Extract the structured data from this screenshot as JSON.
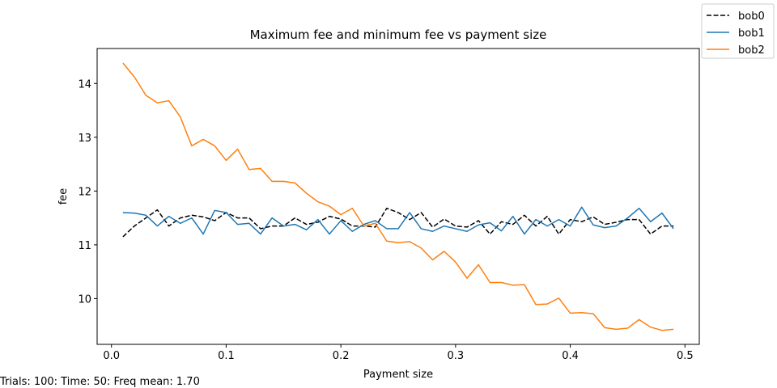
{
  "chart_data": {
    "type": "line",
    "title": "Maximum fee and minimum fee vs payment size",
    "xlabel": "Payment size",
    "ylabel": "fee",
    "xlim": [
      -0.0125,
      0.5125
    ],
    "ylim": [
      9.15,
      14.65
    ],
    "xticks": [
      0.0,
      0.1,
      0.2,
      0.3,
      0.4,
      0.5
    ],
    "xtick_labels": [
      "0.0",
      "0.1",
      "0.2",
      "0.3",
      "0.4",
      "0.5"
    ],
    "yticks": [
      10,
      11,
      12,
      13,
      14
    ],
    "ytick_labels": [
      "10",
      "11",
      "12",
      "13",
      "14"
    ],
    "grid": false,
    "legend_position": "top-right",
    "x": [
      0.01,
      0.02,
      0.03,
      0.04,
      0.05,
      0.06,
      0.07,
      0.08,
      0.09,
      0.1,
      0.11,
      0.12,
      0.13,
      0.14,
      0.15,
      0.16,
      0.17,
      0.18,
      0.19,
      0.2,
      0.21,
      0.22,
      0.23,
      0.24,
      0.25,
      0.26,
      0.27,
      0.28,
      0.29,
      0.3,
      0.31,
      0.32,
      0.33,
      0.34,
      0.35,
      0.36,
      0.37,
      0.38,
      0.39,
      0.4,
      0.41,
      0.42,
      0.43,
      0.44,
      0.45,
      0.46,
      0.47,
      0.48,
      0.49
    ],
    "series": [
      {
        "name": "bob0",
        "color": "#000000",
        "dash": true,
        "values": [
          11.15,
          11.35,
          11.5,
          11.65,
          11.35,
          11.5,
          11.55,
          11.52,
          11.45,
          11.6,
          11.5,
          11.5,
          11.3,
          11.35,
          11.35,
          11.5,
          11.38,
          11.42,
          11.53,
          11.48,
          11.35,
          11.35,
          11.33,
          11.68,
          11.6,
          11.47,
          11.6,
          11.33,
          11.48,
          11.35,
          11.33,
          11.45,
          11.2,
          11.43,
          11.38,
          11.55,
          11.35,
          11.53,
          11.2,
          11.47,
          11.43,
          11.52,
          11.38,
          11.42,
          11.47,
          11.47,
          11.2,
          11.35,
          11.35
        ]
      },
      {
        "name": "bob1",
        "color": "#1f77b4",
        "dash": false,
        "values": [
          11.6,
          11.59,
          11.55,
          11.35,
          11.53,
          11.4,
          11.5,
          11.2,
          11.64,
          11.6,
          11.38,
          11.4,
          11.2,
          11.5,
          11.35,
          11.38,
          11.28,
          11.47,
          11.2,
          11.45,
          11.25,
          11.38,
          11.45,
          11.3,
          11.3,
          11.6,
          11.3,
          11.25,
          11.35,
          11.3,
          11.25,
          11.37,
          11.41,
          11.26,
          11.53,
          11.2,
          11.47,
          11.35,
          11.47,
          11.35,
          11.7,
          11.37,
          11.32,
          11.35,
          11.5,
          11.68,
          11.43,
          11.59,
          11.3
        ]
      },
      {
        "name": "bob2",
        "color": "#ff7f0e",
        "dash": false,
        "values": [
          14.38,
          14.12,
          13.78,
          13.64,
          13.68,
          13.38,
          12.84,
          12.96,
          12.84,
          12.57,
          12.78,
          12.4,
          12.42,
          12.18,
          12.18,
          12.15,
          11.96,
          11.8,
          11.72,
          11.56,
          11.68,
          11.35,
          11.4,
          11.07,
          11.04,
          11.06,
          10.94,
          10.72,
          10.88,
          10.68,
          10.38,
          10.63,
          10.3,
          10.3,
          10.25,
          10.26,
          9.89,
          9.9,
          10.01,
          9.73,
          9.74,
          9.72,
          9.46,
          9.43,
          9.45,
          9.61,
          9.47,
          9.41,
          9.43
        ]
      }
    ]
  },
  "footer": {
    "note": "Trials: 100: Time: 50: Freq mean: 1.70"
  }
}
